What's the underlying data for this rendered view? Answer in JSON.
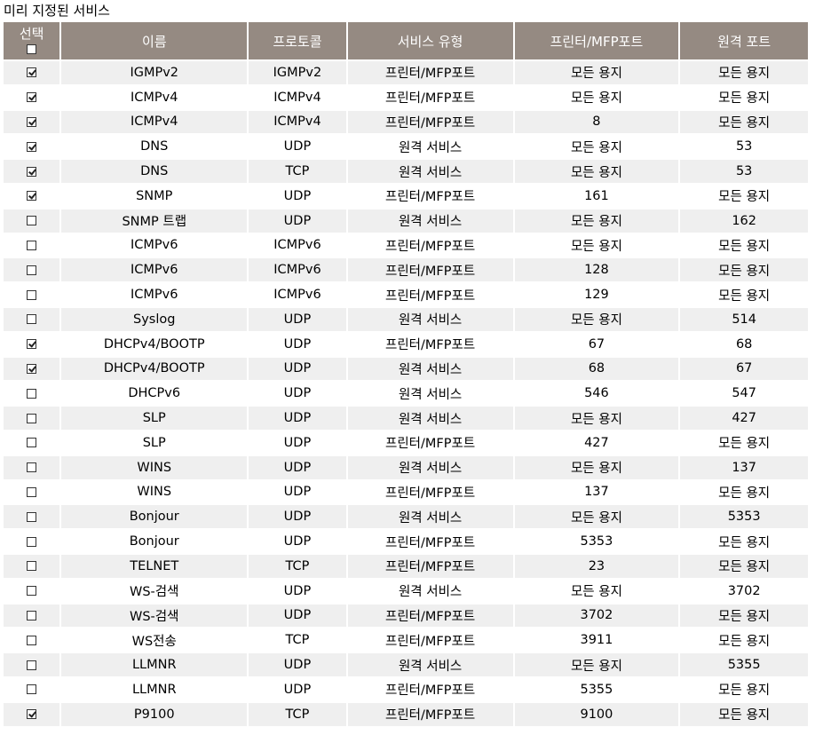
{
  "page": {
    "title": "미리 지정된 서비스"
  },
  "table": {
    "headers": {
      "select": "선택",
      "name": "이름",
      "protocol": "프로토콜",
      "service_type": "서비스 유형",
      "printer_port": "프린터/MFP포트",
      "remote_port": "원격 포트"
    },
    "select_all_checked": false,
    "rows": [
      {
        "checked": true,
        "name": "IGMPv2",
        "protocol": "IGMPv2",
        "type": "프린터/MFP포트",
        "printer_port": "모든 용지",
        "remote_port": "모든 용지"
      },
      {
        "checked": true,
        "name": "ICMPv4",
        "protocol": "ICMPv4",
        "type": "프린터/MFP포트",
        "printer_port": "모든 용지",
        "remote_port": "모든 용지"
      },
      {
        "checked": true,
        "name": "ICMPv4",
        "protocol": "ICMPv4",
        "type": "프린터/MFP포트",
        "printer_port": "8",
        "remote_port": "모든 용지"
      },
      {
        "checked": true,
        "name": "DNS",
        "protocol": "UDP",
        "type": "원격 서비스",
        "printer_port": "모든 용지",
        "remote_port": "53"
      },
      {
        "checked": true,
        "name": "DNS",
        "protocol": "TCP",
        "type": "원격 서비스",
        "printer_port": "모든 용지",
        "remote_port": "53"
      },
      {
        "checked": true,
        "name": "SNMP",
        "protocol": "UDP",
        "type": "프린터/MFP포트",
        "printer_port": "161",
        "remote_port": "모든 용지"
      },
      {
        "checked": false,
        "name": "SNMP 트랩",
        "protocol": "UDP",
        "type": "원격 서비스",
        "printer_port": "모든 용지",
        "remote_port": "162"
      },
      {
        "checked": false,
        "name": "ICMPv6",
        "protocol": "ICMPv6",
        "type": "프린터/MFP포트",
        "printer_port": "모든 용지",
        "remote_port": "모든 용지"
      },
      {
        "checked": false,
        "name": "ICMPv6",
        "protocol": "ICMPv6",
        "type": "프린터/MFP포트",
        "printer_port": "128",
        "remote_port": "모든 용지"
      },
      {
        "checked": false,
        "name": "ICMPv6",
        "protocol": "ICMPv6",
        "type": "프린터/MFP포트",
        "printer_port": "129",
        "remote_port": "모든 용지"
      },
      {
        "checked": false,
        "name": "Syslog",
        "protocol": "UDP",
        "type": "원격 서비스",
        "printer_port": "모든 용지",
        "remote_port": "514"
      },
      {
        "checked": true,
        "name": "DHCPv4/BOOTP",
        "protocol": "UDP",
        "type": "프린터/MFP포트",
        "printer_port": "67",
        "remote_port": "68"
      },
      {
        "checked": true,
        "name": "DHCPv4/BOOTP",
        "protocol": "UDP",
        "type": "원격 서비스",
        "printer_port": "68",
        "remote_port": "67"
      },
      {
        "checked": false,
        "name": "DHCPv6",
        "protocol": "UDP",
        "type": "원격 서비스",
        "printer_port": "546",
        "remote_port": "547"
      },
      {
        "checked": false,
        "name": "SLP",
        "protocol": "UDP",
        "type": "원격 서비스",
        "printer_port": "모든 용지",
        "remote_port": "427"
      },
      {
        "checked": false,
        "name": "SLP",
        "protocol": "UDP",
        "type": "프린터/MFP포트",
        "printer_port": "427",
        "remote_port": "모든 용지"
      },
      {
        "checked": false,
        "name": "WINS",
        "protocol": "UDP",
        "type": "원격 서비스",
        "printer_port": "모든 용지",
        "remote_port": "137"
      },
      {
        "checked": false,
        "name": "WINS",
        "protocol": "UDP",
        "type": "프린터/MFP포트",
        "printer_port": "137",
        "remote_port": "모든 용지"
      },
      {
        "checked": false,
        "name": "Bonjour",
        "protocol": "UDP",
        "type": "원격 서비스",
        "printer_port": "모든 용지",
        "remote_port": "5353"
      },
      {
        "checked": false,
        "name": "Bonjour",
        "protocol": "UDP",
        "type": "프린터/MFP포트",
        "printer_port": "5353",
        "remote_port": "모든 용지"
      },
      {
        "checked": false,
        "name": "TELNET",
        "protocol": "TCP",
        "type": "프린터/MFP포트",
        "printer_port": "23",
        "remote_port": "모든 용지"
      },
      {
        "checked": false,
        "name": "WS-검색",
        "protocol": "UDP",
        "type": "원격 서비스",
        "printer_port": "모든 용지",
        "remote_port": "3702"
      },
      {
        "checked": false,
        "name": "WS-검색",
        "protocol": "UDP",
        "type": "프린터/MFP포트",
        "printer_port": "3702",
        "remote_port": "모든 용지"
      },
      {
        "checked": false,
        "name": "WS전송",
        "protocol": "TCP",
        "type": "프린터/MFP포트",
        "printer_port": "3911",
        "remote_port": "모든 용지"
      },
      {
        "checked": false,
        "name": "LLMNR",
        "protocol": "UDP",
        "type": "원격 서비스",
        "printer_port": "모든 용지",
        "remote_port": "5355"
      },
      {
        "checked": false,
        "name": "LLMNR",
        "protocol": "UDP",
        "type": "프린터/MFP포트",
        "printer_port": "5355",
        "remote_port": "모든 용지"
      },
      {
        "checked": true,
        "name": "P9100",
        "protocol": "TCP",
        "type": "프린터/MFP포트",
        "printer_port": "9100",
        "remote_port": "모든 용지"
      }
    ]
  }
}
